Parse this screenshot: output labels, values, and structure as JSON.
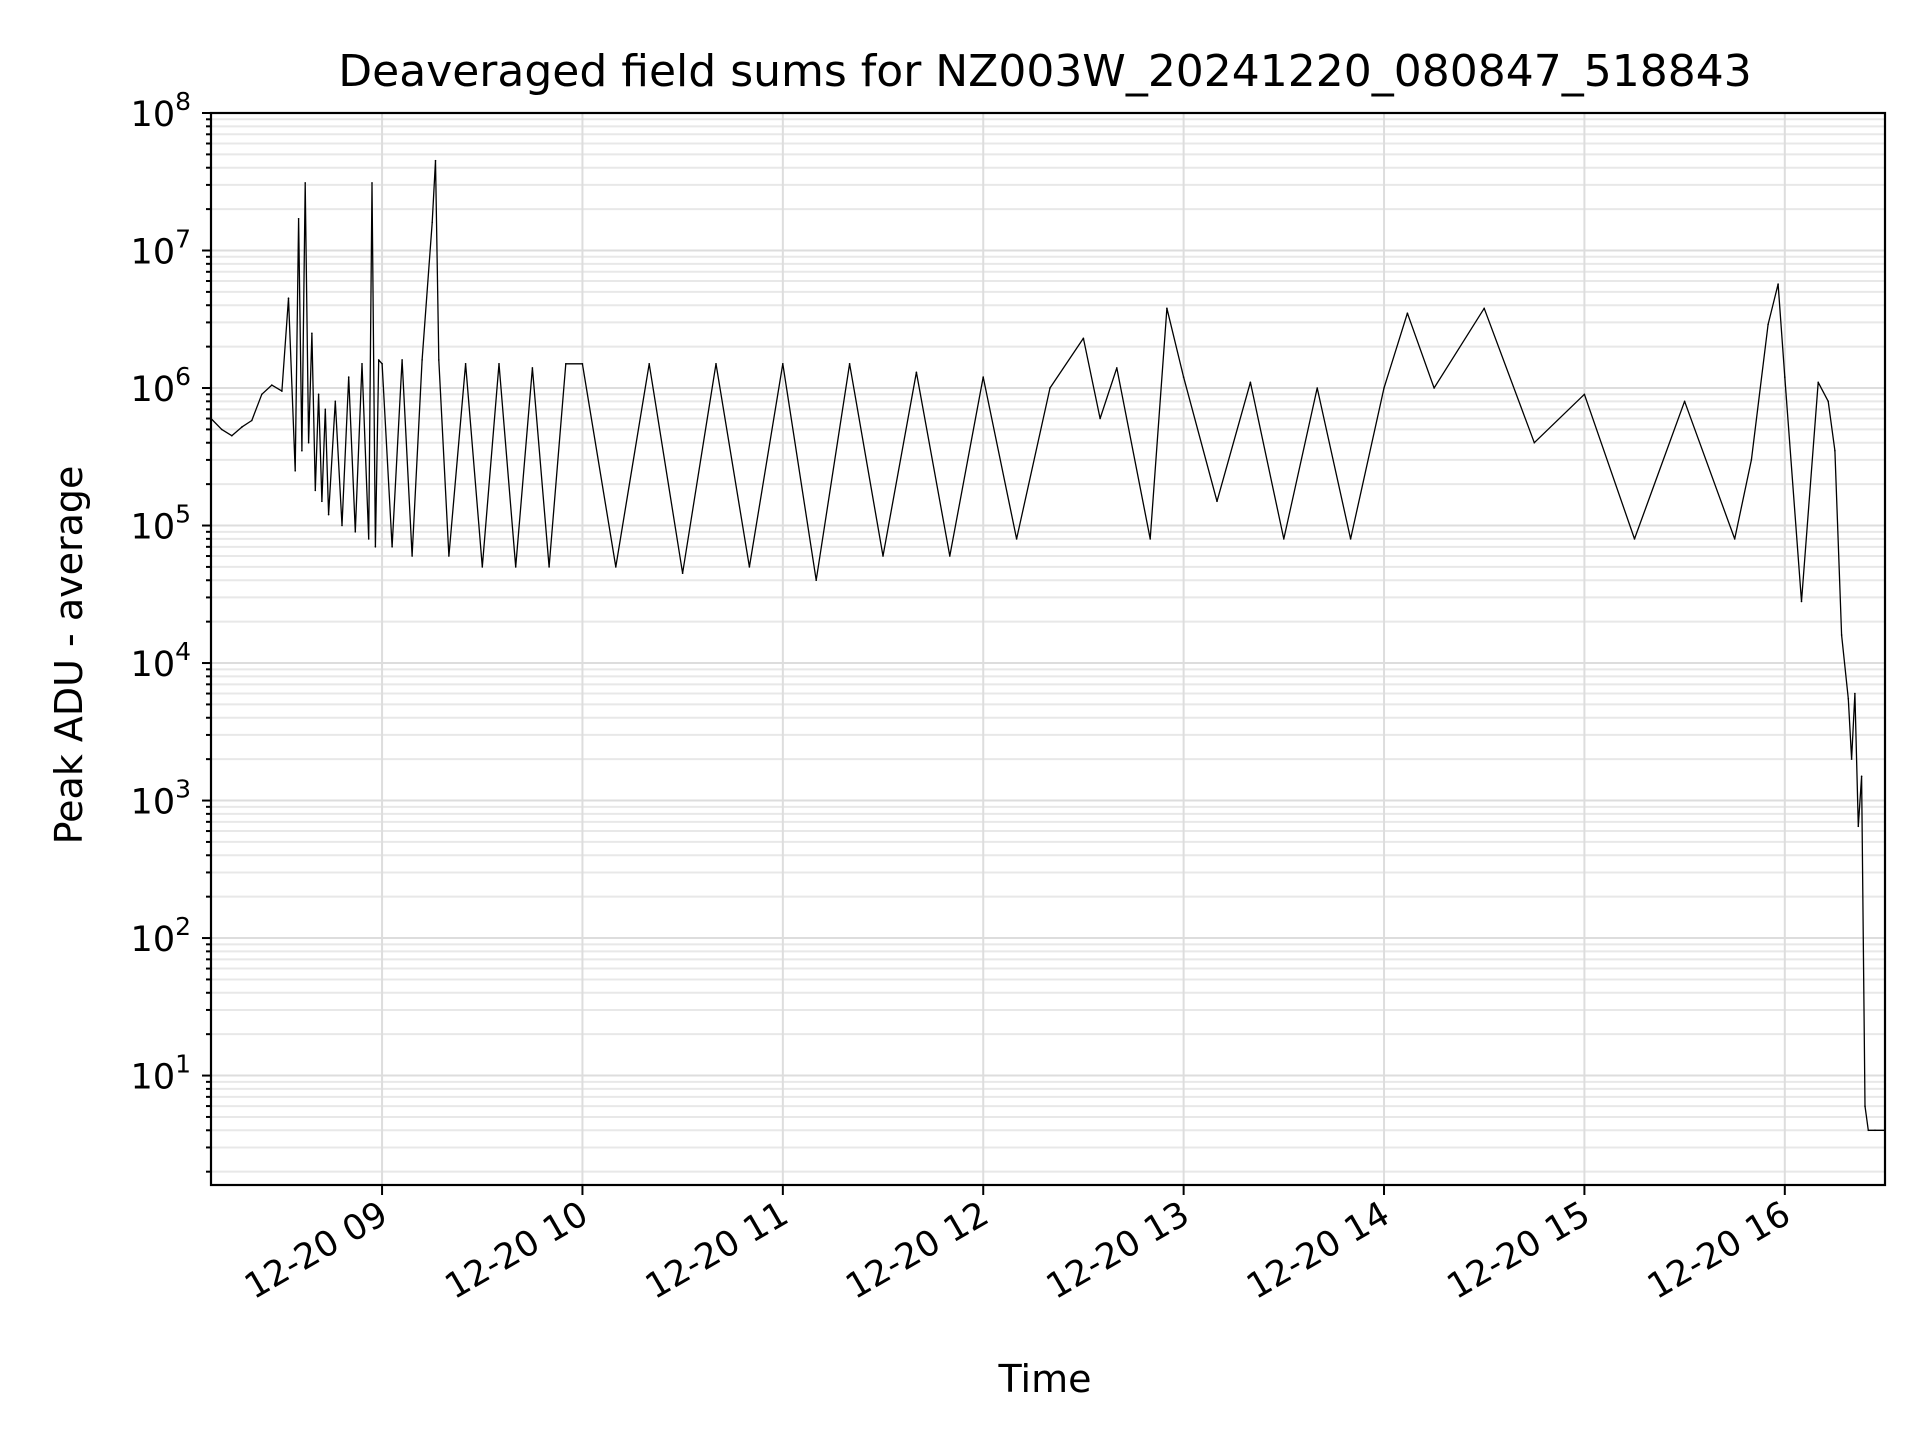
{
  "chart_data": {
    "type": "line",
    "title": "Deaveraged field sums for NZ003W_20241220_080847_518843",
    "xlabel": "Time",
    "ylabel": "Peak ADU - average",
    "y_scale": "log",
    "xlim": [
      "2024-12-20 08:08:47",
      "2024-12-20 16:30:00"
    ],
    "ylim": [
      1.6,
      100000000
    ],
    "x_ticks": [
      {
        "value": "2024-12-20 09:00",
        "label": "12-20 09"
      },
      {
        "value": "2024-12-20 10:00",
        "label": "12-20 10"
      },
      {
        "value": "2024-12-20 11:00",
        "label": "12-20 11"
      },
      {
        "value": "2024-12-20 12:00",
        "label": "12-20 12"
      },
      {
        "value": "2024-12-20 13:00",
        "label": "12-20 13"
      },
      {
        "value": "2024-12-20 14:00",
        "label": "12-20 14"
      },
      {
        "value": "2024-12-20 15:00",
        "label": "12-20 15"
      },
      {
        "value": "2024-12-20 16:00",
        "label": "12-20 16"
      }
    ],
    "y_ticks": [
      {
        "value": 10,
        "base": "10",
        "exp": "1"
      },
      {
        "value": 100,
        "base": "10",
        "exp": "2"
      },
      {
        "value": 1000,
        "base": "10",
        "exp": "3"
      },
      {
        "value": 10000,
        "base": "10",
        "exp": "4"
      },
      {
        "value": 100000,
        "base": "10",
        "exp": "5"
      },
      {
        "value": 1000000,
        "base": "10",
        "exp": "6"
      },
      {
        "value": 10000000,
        "base": "10",
        "exp": "7"
      },
      {
        "value": 100000000,
        "base": "10",
        "exp": "8"
      }
    ],
    "grid": true,
    "line_color": "#000000",
    "series": [
      {
        "x": [
          "2024-12-20 08:08:47",
          "2024-12-20 08:12",
          "2024-12-20 08:15",
          "2024-12-20 08:18",
          "2024-12-20 08:21",
          "2024-12-20 08:24",
          "2024-12-20 08:27",
          "2024-12-20 08:30",
          "2024-12-20 08:32",
          "2024-12-20 08:34",
          "2024-12-20 08:35",
          "2024-12-20 08:36",
          "2024-12-20 08:37",
          "2024-12-20 08:38",
          "2024-12-20 08:39",
          "2024-12-20 08:40",
          "2024-12-20 08:41",
          "2024-12-20 08:42",
          "2024-12-20 08:43",
          "2024-12-20 08:44",
          "2024-12-20 08:46",
          "2024-12-20 08:48",
          "2024-12-20 08:50",
          "2024-12-20 08:52",
          "2024-12-20 08:54",
          "2024-12-20 08:56",
          "2024-12-20 08:57",
          "2024-12-20 08:58",
          "2024-12-20 08:59",
          "2024-12-20 09:00",
          "2024-12-20 09:03",
          "2024-12-20 09:06",
          "2024-12-20 09:09",
          "2024-12-20 09:12",
          "2024-12-20 09:15",
          "2024-12-20 09:16",
          "2024-12-20 09:17",
          "2024-12-20 09:20",
          "2024-12-20 09:25",
          "2024-12-20 09:30",
          "2024-12-20 09:35",
          "2024-12-20 09:40",
          "2024-12-20 09:45",
          "2024-12-20 09:50",
          "2024-12-20 09:55",
          "2024-12-20 10:00",
          "2024-12-20 10:10",
          "2024-12-20 10:20",
          "2024-12-20 10:30",
          "2024-12-20 10:40",
          "2024-12-20 10:50",
          "2024-12-20 11:00",
          "2024-12-20 11:10",
          "2024-12-20 11:20",
          "2024-12-20 11:30",
          "2024-12-20 11:40",
          "2024-12-20 11:50",
          "2024-12-20 12:00",
          "2024-12-20 12:10",
          "2024-12-20 12:20",
          "2024-12-20 12:30",
          "2024-12-20 12:35",
          "2024-12-20 12:40",
          "2024-12-20 12:50",
          "2024-12-20 12:55",
          "2024-12-20 13:00",
          "2024-12-20 13:10",
          "2024-12-20 13:20",
          "2024-12-20 13:30",
          "2024-12-20 13:40",
          "2024-12-20 13:50",
          "2024-12-20 14:00",
          "2024-12-20 14:07",
          "2024-12-20 14:15",
          "2024-12-20 14:30",
          "2024-12-20 14:45",
          "2024-12-20 15:00",
          "2024-12-20 15:15",
          "2024-12-20 15:30",
          "2024-12-20 15:45",
          "2024-12-20 15:50",
          "2024-12-20 15:55",
          "2024-12-20 15:58",
          "2024-12-20 16:00",
          "2024-12-20 16:05",
          "2024-12-20 16:10",
          "2024-12-20 16:13",
          "2024-12-20 16:15",
          "2024-12-20 16:17",
          "2024-12-20 16:19",
          "2024-12-20 16:20",
          "2024-12-20 16:21",
          "2024-12-20 16:22",
          "2024-12-20 16:23",
          "2024-12-20 16:24",
          "2024-12-20 16:25",
          "2024-12-20 16:27",
          "2024-12-20 16:30"
        ],
        "y": [
          600000,
          500000,
          450000,
          520000,
          580000,
          900000,
          1050000,
          950000,
          4500000,
          250000,
          17000000,
          350000,
          31000000,
          400000,
          2500000,
          180000,
          900000,
          150000,
          700000,
          120000,
          800000,
          100000,
          1200000,
          90000,
          1500000,
          80000,
          31000000,
          70000,
          1600000,
          1500000,
          70000,
          1600000,
          60000,
          1600000,
          16000000,
          45000000,
          1600000,
          60000,
          1500000,
          50000,
          1500000,
          50000,
          1400000,
          50000,
          1500000,
          1500000,
          50000,
          1500000,
          45000,
          1500000,
          50000,
          1500000,
          40000,
          1500000,
          60000,
          1300000,
          60000,
          1200000,
          80000,
          1000000,
          2300000,
          600000,
          1400000,
          80000,
          3800000,
          1200000,
          150000,
          1100000,
          80000,
          1000000,
          80000,
          1000000,
          3500000,
          1000000,
          3800000,
          400000,
          900000,
          80000,
          800000,
          80000,
          300000,
          2900000,
          5700000,
          1200000,
          28000,
          1100000,
          800000,
          350000,
          16000,
          5500,
          2000,
          6000,
          650,
          1500,
          6,
          4,
          4,
          4
        ]
      }
    ]
  }
}
